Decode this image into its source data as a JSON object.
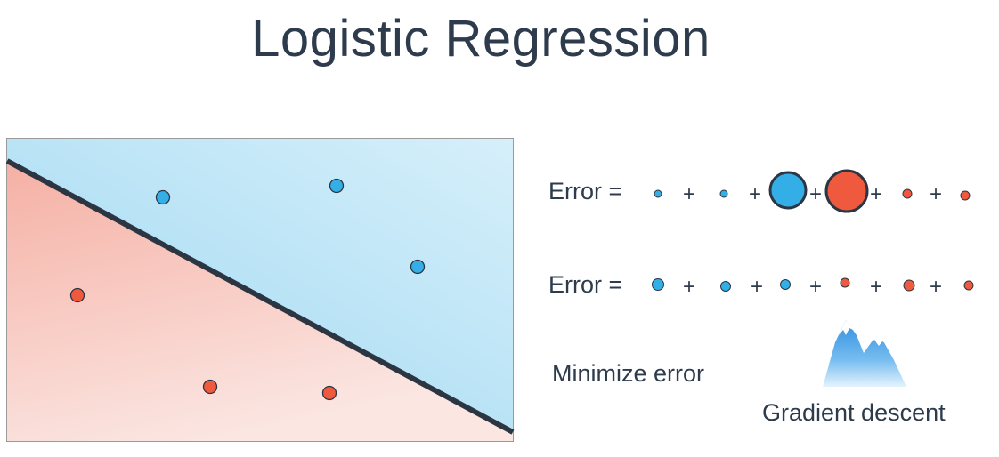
{
  "title": "Logistic Regression",
  "equations": {
    "row1_label": "Error =",
    "row2_label": "Error =",
    "plus": "+"
  },
  "minimize_label": "Minimize error",
  "gradient_label": "Gradient descent",
  "icons": {
    "mountain": "mountain-icon"
  },
  "colors": {
    "blue": "#33aee6",
    "red": "#ef5a3e",
    "blue_region": "#a9ddf3",
    "red_region": "#f6b3a8",
    "line": "#2b3642"
  }
}
